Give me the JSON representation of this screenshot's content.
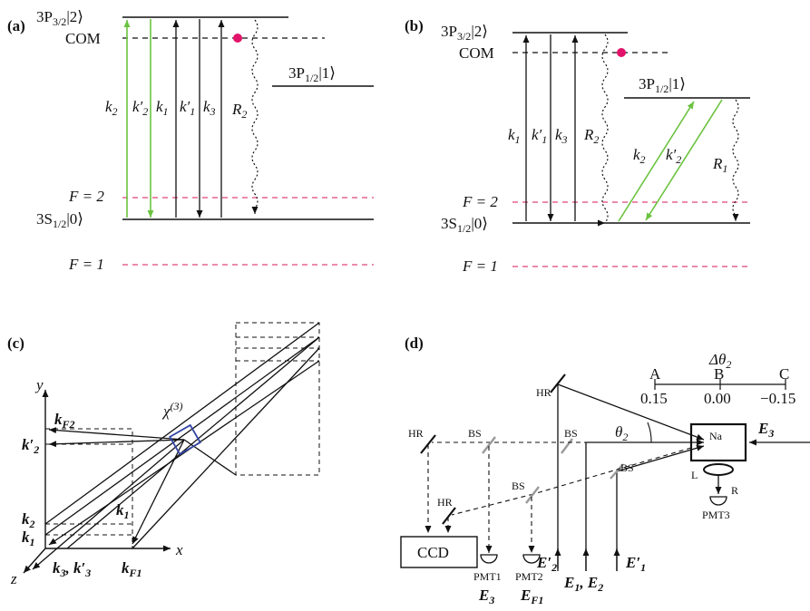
{
  "colors": {
    "line": "#111111",
    "green": "#6ac33f",
    "pink": "#e0457b",
    "atom": "#e2136b",
    "crystal": "#3346a6"
  },
  "panel_a": {
    "tag": "(a)",
    "top_level": "3P",
    "top_sub": "3/2",
    "top_ket": "|2⟩",
    "com": "COM",
    "mid_level": "3P",
    "mid_sub": "1/2",
    "mid_ket": "|1⟩",
    "f2": "F = 2",
    "ground": "3S",
    "ground_sub": "1/2",
    "ground_ket": "|0⟩",
    "f1": "F = 1",
    "beams": [
      "k",
      "k′",
      "k",
      "k′",
      "k"
    ],
    "beam_subs": [
      "2",
      "2",
      "1",
      "1",
      "3"
    ],
    "decay": "R",
    "decay_sub": "2"
  },
  "panel_b": {
    "tag": "(b)",
    "top_level": "3P",
    "top_sub": "3/2",
    "top_ket": "|2⟩",
    "com": "COM",
    "mid_level": "3P",
    "mid_sub": "1/2",
    "mid_ket": "|1⟩",
    "f2": "F = 2",
    "ground": "3S",
    "ground_sub": "1/2",
    "ground_ket": "|0⟩",
    "f1": "F = 1",
    "beams": [
      "k",
      "k′",
      "k",
      "k",
      "k′"
    ],
    "beam_subs": [
      "1",
      "1",
      "3",
      "2",
      "2"
    ],
    "decay2": "R",
    "decay2_sub": "2",
    "decay1": "R",
    "decay1_sub": "1"
  },
  "panel_c": {
    "tag": "(c)",
    "axis_y": "y",
    "axis_x": "x",
    "axis_z": "z",
    "chi": "χ",
    "chi_sup": "(3)",
    "kF2": "k",
    "kF2_sub": "F2",
    "k2p": "k′",
    "k2p_sub": "2",
    "k2": "k",
    "k2_sub": "2",
    "k1": "k",
    "k1_sub": "1",
    "k1b": "k",
    "k1b_sub": "1",
    "k3": "k",
    "k3_sub": "3",
    "k3p": ", k′",
    "k3p_sub": "3",
    "kF1": "k",
    "kF1_sub": "F1"
  },
  "panel_d": {
    "tag": "(d)",
    "delta": "Δθ",
    "delta_sub": "2",
    "scale_labels": [
      "A",
      "B",
      "C"
    ],
    "scale_values": [
      "0.15",
      "0.00",
      "−0.15"
    ],
    "theta": "θ",
    "theta_sub": "2",
    "cell": "Na",
    "E3": "E",
    "E3_sub": "3",
    "hr1": "HR",
    "hr2": "HR",
    "hr3": "HR",
    "bs1": "BS",
    "bs2": "BS",
    "bs3": "BS",
    "bs4": "BS",
    "lens": "L",
    "refl": "R",
    "pmt3": "PMT3",
    "ccd": "CCD",
    "pmt1": "PMT1",
    "pmt2": "PMT2",
    "E2p": "E′",
    "E2p_sub": "2",
    "E12": "E",
    "E12_sub1": "1",
    "E12_mid": ", E",
    "E12_sub2": "2",
    "E1p": "E′",
    "E1p_sub": "1",
    "det1": "E",
    "det1_sub": "3",
    "det2": "E",
    "det2_sub": "F1"
  }
}
